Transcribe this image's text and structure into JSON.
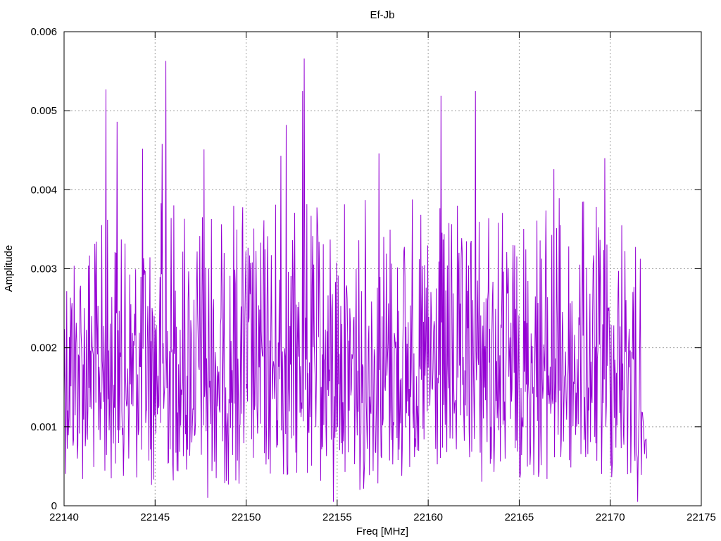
{
  "chart_data": {
    "type": "line",
    "title": "Ef-Jb",
    "xlabel": "Freq [MHz]",
    "ylabel": "Amplitude",
    "xlim": [
      22140,
      22175
    ],
    "ylim": [
      0,
      0.006
    ],
    "xticks": [
      22140,
      22145,
      22150,
      22155,
      22160,
      22165,
      22170,
      22175
    ],
    "yticks": [
      0,
      0.001,
      0.002,
      0.003,
      0.004,
      0.005,
      0.006
    ],
    "ytick_labels": [
      "0",
      "0.001",
      "0.002",
      "0.003",
      "0.004",
      "0.005",
      "0.006"
    ],
    "grid": true,
    "legend": "none",
    "series": [
      {
        "color": "#9400d3",
        "x_range": [
          22140,
          22172
        ],
        "sample_count": 1100,
        "peaks": [
          {
            "x": 22142.3,
            "y": 0.00527
          },
          {
            "x": 22142.9,
            "y": 0.00486
          },
          {
            "x": 22145.6,
            "y": 0.00563
          },
          {
            "x": 22145.4,
            "y": 0.00458
          },
          {
            "x": 22144.3,
            "y": 0.00452
          },
          {
            "x": 22147.7,
            "y": 0.00451
          },
          {
            "x": 22151.9,
            "y": 0.00443
          },
          {
            "x": 22152.2,
            "y": 0.00482
          },
          {
            "x": 22153.2,
            "y": 0.00566
          },
          {
            "x": 22153.1,
            "y": 0.00525
          },
          {
            "x": 22157.3,
            "y": 0.00446
          },
          {
            "x": 22160.7,
            "y": 0.00519
          },
          {
            "x": 22162.6,
            "y": 0.00525
          },
          {
            "x": 22169.7,
            "y": 0.0044
          },
          {
            "x": 22166.9,
            "y": 0.00426
          }
        ],
        "troughs": [
          {
            "x": 22147.9,
            "y": 0.0001
          },
          {
            "x": 22154.8,
            "y": 5e-05
          },
          {
            "x": 22171.5,
            "y": 5e-05
          },
          {
            "x": 22172,
            "y": 0.0006
          }
        ]
      }
    ]
  }
}
